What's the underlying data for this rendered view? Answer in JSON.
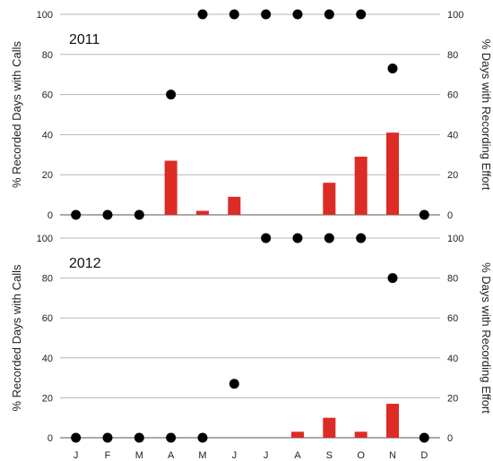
{
  "chart_data": [
    {
      "type": "bar",
      "panel_label": "2011",
      "categories": [
        "J",
        "F",
        "M",
        "A",
        "M",
        "J",
        "J",
        "A",
        "S",
        "O",
        "N",
        "D"
      ],
      "series": [
        {
          "values": [
            0,
            0,
            0,
            27,
            2,
            9,
            0,
            0,
            16,
            29,
            41,
            0
          ],
          "kind": "bar",
          "color": "#dd2b26",
          "axis": "left"
        },
        {
          "values": [
            0,
            0,
            0,
            60,
            100,
            100,
            100,
            100,
            100,
            100,
            73,
            0
          ],
          "kind": "scatter",
          "color": "#000000",
          "axis": "right"
        }
      ],
      "ylabel": "% Recorded Days with Calls",
      "y2label": "% Days with Recording Effort",
      "ylim": [
        0,
        100
      ],
      "yticks": [
        0,
        20,
        40,
        60,
        80,
        100
      ],
      "grid": true
    },
    {
      "type": "bar",
      "panel_label": "2012",
      "categories": [
        "J",
        "F",
        "M",
        "A",
        "M",
        "J",
        "J",
        "A",
        "S",
        "O",
        "N",
        "D"
      ],
      "series": [
        {
          "values": [
            0,
            0,
            0,
            0,
            0,
            0,
            0,
            3,
            10,
            3,
            17,
            0
          ],
          "kind": "bar",
          "color": "#dd2b26",
          "axis": "left"
        },
        {
          "values": [
            0,
            0,
            0,
            0,
            0,
            27,
            100,
            100,
            100,
            100,
            80,
            0
          ],
          "kind": "scatter",
          "color": "#000000",
          "axis": "right"
        }
      ],
      "ylabel": "% Recorded Days with Calls",
      "y2label": "% Days with Recording Effort",
      "ylim": [
        0,
        100
      ],
      "yticks": [
        0,
        20,
        40,
        60,
        80,
        100
      ],
      "grid": true
    }
  ]
}
